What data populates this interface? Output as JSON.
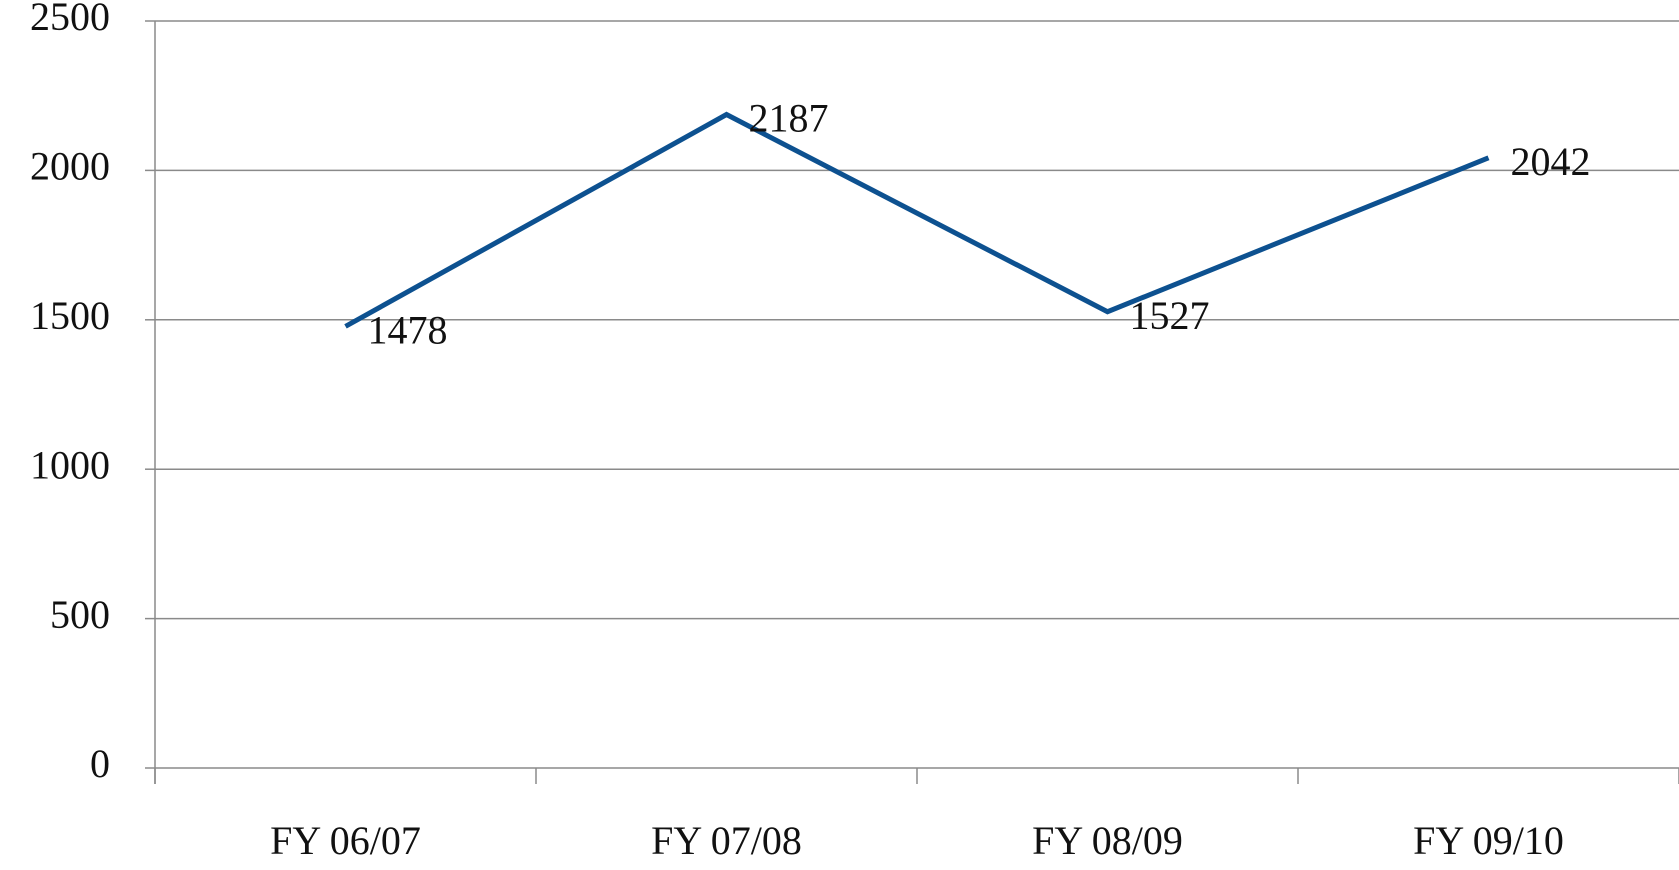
{
  "chart_data": {
    "type": "line",
    "categories": [
      "FY 06/07",
      "FY 07/08",
      "FY 08/09",
      "FY 09/10"
    ],
    "series": [
      {
        "color": "#0d5190",
        "values": [
          1478,
          2187,
          1527,
          2042
        ]
      }
    ],
    "ylim": [
      0,
      2500
    ],
    "yticks": [
      0,
      500,
      1000,
      1500,
      2000,
      2500
    ],
    "grid": true,
    "data_labels": true
  }
}
